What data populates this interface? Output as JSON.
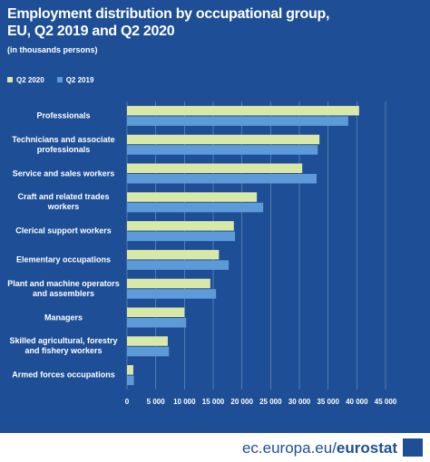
{
  "chart_data": {
    "type": "hbar",
    "title": [
      "Employment distribution by occupational group,",
      "EU, Q2 2019 and Q2 2020"
    ],
    "subtitle": "(in thousands persons)",
    "categories": [
      "Professionals",
      "Technicians and associate professionals",
      "Service and sales workers",
      "Craft and related trades workers",
      "Clerical support workers",
      "Elementary occupations",
      "Plant and machine operators and assemblers",
      "Managers",
      "Skilled agricultural, forestry and fishery workers",
      "Armed forces occupations"
    ],
    "series": [
      {
        "name": "Q2 2020",
        "color": "#d9e8a6",
        "values": [
          40400,
          33500,
          30500,
          22600,
          18600,
          16000,
          14500,
          10000,
          7100,
          1100
        ]
      },
      {
        "name": "Q2 2019",
        "color": "#5d9bd8",
        "values": [
          38500,
          33200,
          33000,
          23700,
          18800,
          17700,
          15500,
          10300,
          7300,
          1200
        ]
      }
    ],
    "xlim": [
      0,
      45000
    ],
    "xticks": [
      0,
      {
        "value": 5000,
        "label": "5 000"
      },
      {
        "value": 10000,
        "label": "10 000"
      },
      {
        "value": 15000,
        "label": "15 000"
      },
      {
        "value": 20000,
        "label": "20 000"
      },
      {
        "value": 25000,
        "label": "25 000"
      },
      {
        "value": 30000,
        "label": "30 000"
      },
      {
        "value": 35000,
        "label": "35 000"
      },
      {
        "value": 40000,
        "label": "40 000"
      },
      {
        "value": 45000,
        "label": "45 000"
      }
    ],
    "grid": true,
    "legend": "top-left"
  },
  "footer": {
    "url": "ec.europa.eu/",
    "brand": "eurostat"
  }
}
